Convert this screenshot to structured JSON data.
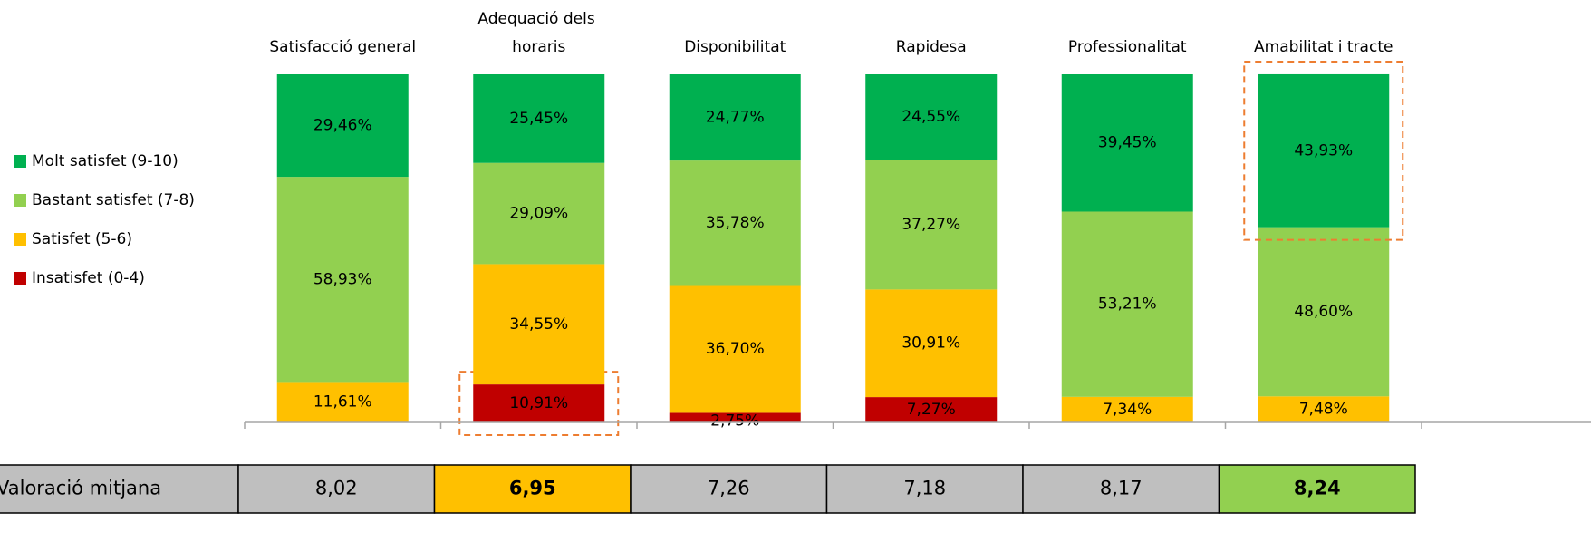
{
  "chart_data": {
    "type": "stacked_bar",
    "categories": [
      "Satisfacció general",
      "Adequació dels horaris",
      "Disponibilitat",
      "Rapidesa",
      "Professionalitat",
      "Amabilitat i tracte"
    ],
    "series": [
      {
        "name": "Insatisfet (0-4)",
        "color": "#c00000",
        "values": [
          null,
          10.91,
          2.75,
          7.27,
          null,
          null
        ],
        "value_labels": [
          null,
          "10,91%",
          "2,75%",
          "7,27%",
          null,
          null
        ]
      },
      {
        "name": "Satisfet (5-6)",
        "color": "#ffc000",
        "values": [
          11.61,
          34.55,
          36.7,
          30.91,
          7.34,
          7.48
        ],
        "value_labels": [
          "11,61%",
          "34,55%",
          "36,70%",
          "30,91%",
          "7,34%",
          "7,48%"
        ]
      },
      {
        "name": "Bastant satisfet (7-8)",
        "color": "#92d050",
        "values": [
          58.93,
          29.09,
          35.78,
          37.27,
          53.21,
          48.6
        ],
        "value_labels": [
          "58,93%",
          "29,09%",
          "35,78%",
          "37,27%",
          "53,21%",
          "48,60%"
        ]
      },
      {
        "name": "Molt satisfet (9-10)",
        "color": "#00b050",
        "values": [
          29.46,
          25.45,
          24.77,
          24.55,
          39.45,
          43.93
        ],
        "value_labels": [
          "29,46%",
          "25,45%",
          "24,77%",
          "24,55%",
          "39,45%",
          "43,93%"
        ]
      }
    ],
    "ylim": [
      0,
      100
    ],
    "highlighted_segments": [
      [
        0,
        1
      ],
      [
        3,
        5
      ]
    ],
    "highlight_color": "#ed7d31"
  },
  "table": {
    "row_label": "Valoració mitjana",
    "values": [
      "8,02",
      "6,95",
      "7,26",
      "7,18",
      "8,17",
      "8,24"
    ],
    "cell_colors": [
      "#bfbfbf",
      "#ffc000",
      "#bfbfbf",
      "#bfbfbf",
      "#bfbfbf",
      "#92d050"
    ],
    "bold": [
      false,
      true,
      false,
      false,
      false,
      true
    ],
    "label_color": "#bfbfbf"
  }
}
